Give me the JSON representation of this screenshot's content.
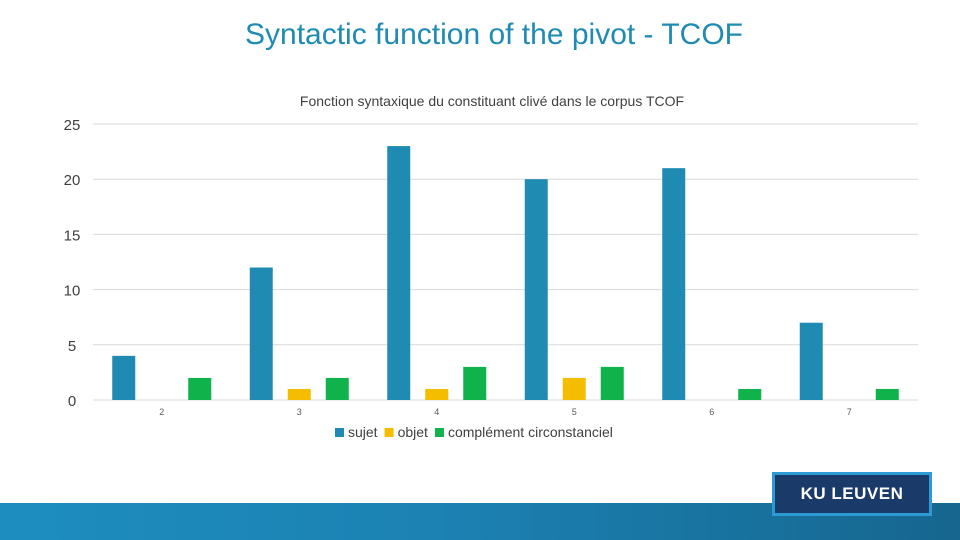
{
  "slide": {
    "title": "Syntactic function of the pivot - TCOF",
    "logo_text": "KU LEUVEN"
  },
  "chart_data": {
    "type": "bar",
    "title": "Fonction syntaxique du constituant clivé dans le corpus TCOF",
    "xlabel": "",
    "ylabel": "",
    "categories": [
      "2",
      "3",
      "4",
      "5",
      "6",
      "7"
    ],
    "ylim": [
      0,
      25
    ],
    "yticks": [
      "0",
      "5",
      "10",
      "15",
      "20",
      "25"
    ],
    "grid": true,
    "legend_position": "bottom",
    "series": [
      {
        "name": "sujet",
        "color": "#1f8bb3",
        "values": [
          4,
          12,
          23,
          20,
          21,
          7
        ]
      },
      {
        "name": "objet",
        "color": "#f5bd00",
        "values": [
          0,
          1,
          1,
          2,
          0,
          0
        ]
      },
      {
        "name": "complément circonstanciel",
        "color": "#0fb24b",
        "values": [
          2,
          2,
          3,
          3,
          1,
          1
        ]
      }
    ]
  }
}
